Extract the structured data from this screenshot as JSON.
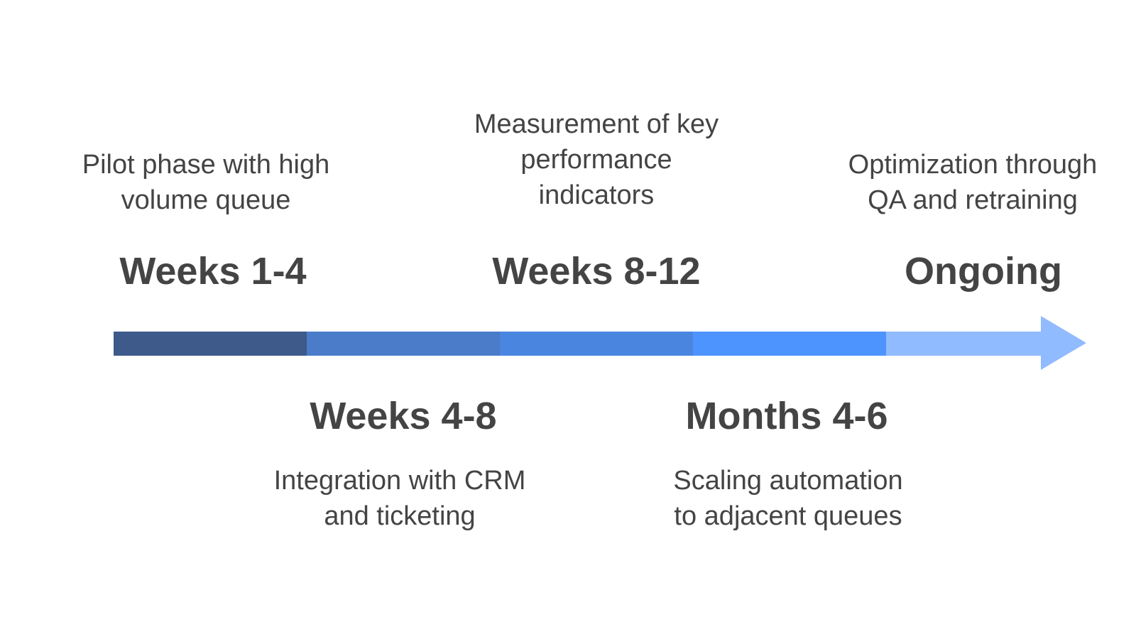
{
  "timeline": {
    "phases": [
      {
        "period": "Weeks 1-4",
        "description": "Pilot phase with high\nvolume queue",
        "color": "#3d5a8a"
      },
      {
        "period": "Weeks 4-8",
        "description": "Integration with CRM\nand ticketing",
        "color": "#4a7cc9"
      },
      {
        "period": "Weeks 8-12",
        "description": "Measurement of key\nperformance\nindicators",
        "color": "#4a86e0"
      },
      {
        "period": "Months 4-6",
        "description": "Scaling automation\nto adjacent queues",
        "color": "#4d94ff"
      },
      {
        "period": "Ongoing",
        "description": "Optimization through\nQA and retraining",
        "color": "#91bbff"
      }
    ]
  }
}
